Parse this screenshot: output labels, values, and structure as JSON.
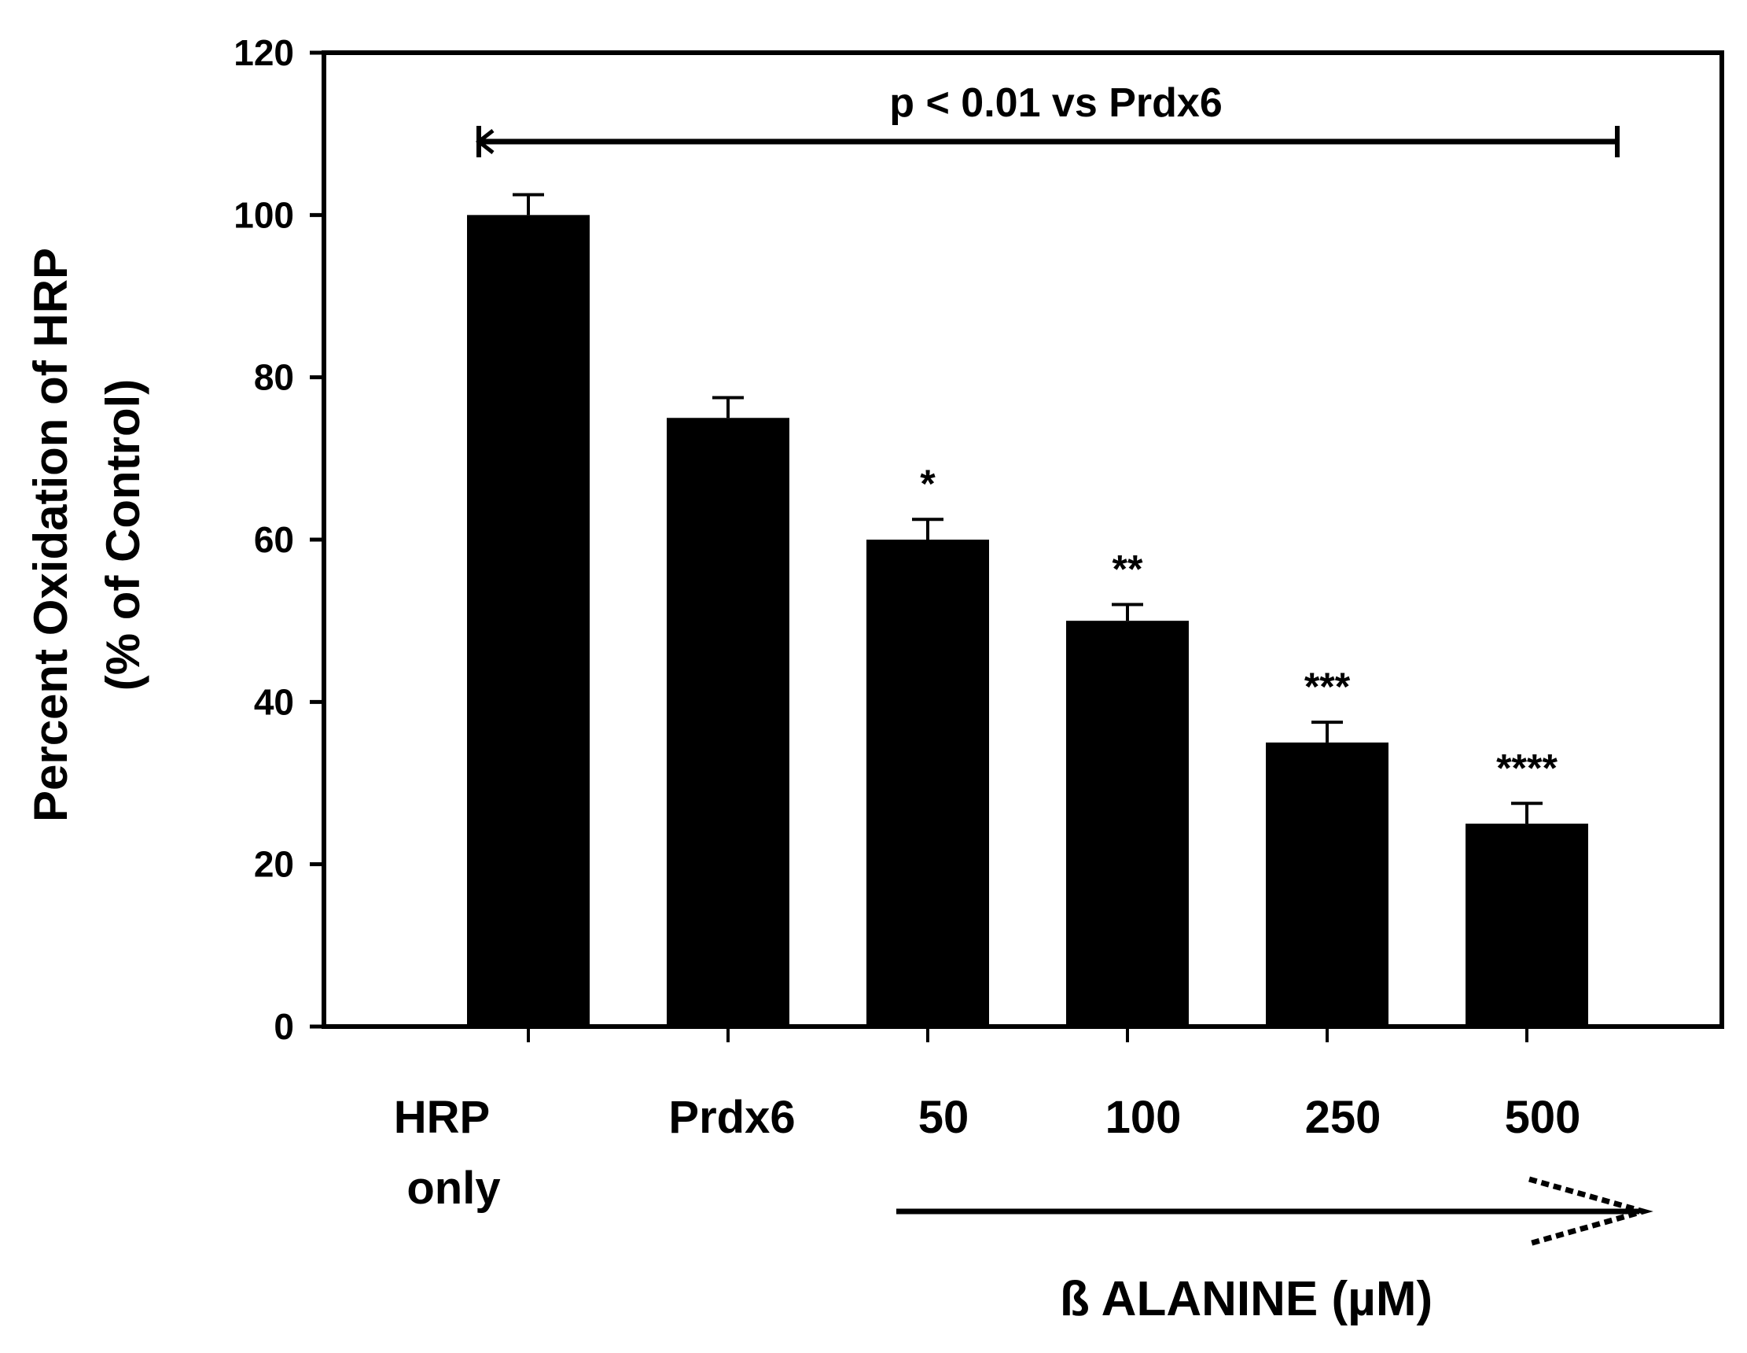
{
  "chart_data": {
    "type": "bar",
    "title": "",
    "ylabel_line1": "Percent Oxidation of HRP",
    "ylabel_line2": "(% of Control)",
    "xlabel": "ß ALANINE (µM)",
    "ylim": [
      0,
      120
    ],
    "yticks": [
      0,
      20,
      40,
      60,
      80,
      100,
      120
    ],
    "grid": false,
    "legend": "none",
    "categories": [
      {
        "label_line1": "HRP",
        "label_line2": "only"
      },
      {
        "label_line1": "Prdx6",
        "label_line2": ""
      },
      {
        "label_line1": "50",
        "label_line2": ""
      },
      {
        "label_line1": "100",
        "label_line2": ""
      },
      {
        "label_line1": "250",
        "label_line2": ""
      },
      {
        "label_line1": "500",
        "label_line2": ""
      }
    ],
    "values": [
      100,
      75,
      60,
      50,
      35,
      25
    ],
    "errors": [
      2.5,
      2.5,
      2.5,
      2,
      2.5,
      2.5
    ],
    "significance": [
      "",
      "",
      "*",
      "**",
      "***",
      "****"
    ],
    "annotation": {
      "text": "p < 0.01 vs Prdx6",
      "from_category": 0,
      "to_category": 5
    },
    "bar_color": "#000000"
  }
}
